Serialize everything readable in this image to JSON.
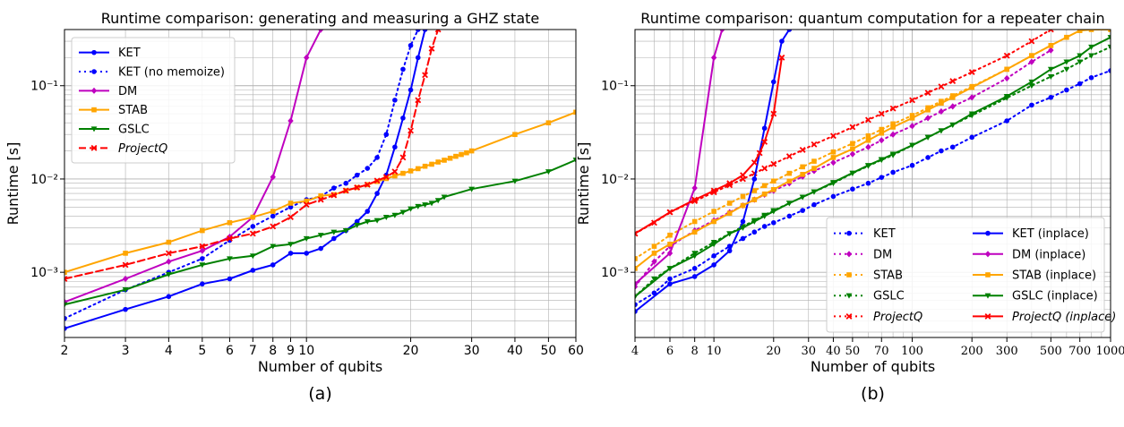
{
  "chart_data": [
    {
      "type": "line",
      "title": "Runtime comparison: generating and measuring a GHZ state",
      "xlabel": "Number of qubits",
      "ylabel": "Runtime [s]",
      "x_scale": "log",
      "y_scale": "log",
      "xlim": [
        2,
        60
      ],
      "ylim": [
        0.0002,
        0.4
      ],
      "x_ticks": [
        2,
        3,
        4,
        5,
        6,
        7,
        8,
        9,
        10,
        20,
        30,
        40,
        50,
        60
      ],
      "x_tick_labels": [
        "2",
        "3",
        "4",
        "5",
        "6",
        "7",
        "8",
        "9",
        "10",
        "20",
        "30",
        "40",
        "50",
        "60"
      ],
      "y_ticks": [
        0.001,
        0.01,
        0.1
      ],
      "y_tick_labels": [
        "10⁻³",
        "10⁻²",
        "10⁻¹"
      ],
      "grid": true,
      "legend_position": "top-left",
      "caption": "(a)",
      "series": [
        {
          "name": "KET",
          "color": "#0000ff",
          "style": "solid",
          "marker": "circle",
          "x": [
            2,
            3,
            4,
            5,
            6,
            7,
            8,
            9,
            10,
            11,
            12,
            13,
            14,
            15,
            16,
            17,
            18,
            19,
            20,
            21,
            22
          ],
          "y": [
            0.00025,
            0.0004,
            0.00055,
            0.00075,
            0.00085,
            0.00105,
            0.0012,
            0.0016,
            0.0016,
            0.0018,
            0.0023,
            0.0028,
            0.0035,
            0.0045,
            0.007,
            0.011,
            0.022,
            0.045,
            0.09,
            0.2,
            0.4
          ]
        },
        {
          "name": "KET (no memoize)",
          "color": "#0000ff",
          "style": "dotted",
          "marker": "circle",
          "x": [
            2,
            3,
            4,
            5,
            6,
            7,
            8,
            9,
            10,
            11,
            12,
            13,
            14,
            15,
            16,
            17,
            18,
            19,
            20,
            21
          ],
          "y": [
            0.00032,
            0.00065,
            0.001,
            0.0014,
            0.0022,
            0.0031,
            0.004,
            0.005,
            0.006,
            0.0065,
            0.008,
            0.009,
            0.011,
            0.013,
            0.017,
            0.03,
            0.07,
            0.15,
            0.27,
            0.4
          ]
        },
        {
          "name": "DM",
          "color": "#bf00bf",
          "style": "solid",
          "marker": "diamond",
          "x": [
            2,
            3,
            4,
            5,
            6,
            7,
            8,
            9,
            10,
            11
          ],
          "y": [
            0.00048,
            0.00085,
            0.0013,
            0.0017,
            0.0024,
            0.0039,
            0.0105,
            0.042,
            0.2,
            0.4
          ]
        },
        {
          "name": "STAB",
          "color": "#ffa500",
          "style": "solid",
          "marker": "square",
          "x": [
            2,
            3,
            4,
            5,
            6,
            7,
            8,
            9,
            10,
            11,
            12,
            13,
            14,
            15,
            16,
            17,
            18,
            19,
            20,
            21,
            22,
            23,
            24,
            25,
            26,
            27,
            28,
            29,
            30,
            40,
            50,
            60
          ],
          "y": [
            0.001,
            0.0016,
            0.0021,
            0.0028,
            0.0034,
            0.0039,
            0.0045,
            0.0055,
            0.0058,
            0.0066,
            0.0068,
            0.0075,
            0.0081,
            0.0087,
            0.0094,
            0.0101,
            0.0108,
            0.0115,
            0.0122,
            0.0129,
            0.0137,
            0.0144,
            0.0152,
            0.0159,
            0.0167,
            0.0175,
            0.0183,
            0.0191,
            0.02,
            0.03,
            0.04,
            0.052
          ]
        },
        {
          "name": "GSLC",
          "color": "#008000",
          "style": "solid",
          "marker": "triangle-down",
          "x": [
            2,
            3,
            4,
            5,
            6,
            7,
            8,
            9,
            10,
            11,
            12,
            13,
            14,
            15,
            16,
            17,
            18,
            19,
            20,
            21,
            22,
            23,
            24,
            25,
            30,
            40,
            50,
            60
          ],
          "y": [
            0.00045,
            0.00065,
            0.00095,
            0.0012,
            0.0014,
            0.0015,
            0.0019,
            0.002,
            0.0023,
            0.0025,
            0.0027,
            0.0028,
            0.0032,
            0.0035,
            0.0036,
            0.0039,
            0.0041,
            0.0044,
            0.0048,
            0.0051,
            0.0053,
            0.0055,
            0.0059,
            0.0064,
            0.0078,
            0.0095,
            0.012,
            0.016
          ]
        },
        {
          "name": "ProjectQ",
          "color": "#ff0000",
          "style": "dashed",
          "marker": "x",
          "x": [
            2,
            3,
            4,
            5,
            6,
            7,
            8,
            9,
            10,
            11,
            12,
            13,
            14,
            15,
            16,
            17,
            18,
            19,
            20,
            21,
            22,
            23,
            24
          ],
          "y": [
            0.00085,
            0.0012,
            0.0016,
            0.0019,
            0.0023,
            0.0026,
            0.0031,
            0.0039,
            0.0053,
            0.006,
            0.0067,
            0.0075,
            0.0081,
            0.0087,
            0.0096,
            0.0105,
            0.012,
            0.017,
            0.033,
            0.07,
            0.13,
            0.25,
            0.4
          ]
        }
      ]
    },
    {
      "type": "line",
      "title": "Runtime comparison: quantum computation for a repeater chain",
      "xlabel": "Number of qubits",
      "ylabel": "Runtime [s]",
      "x_scale": "log",
      "y_scale": "log",
      "xlim": [
        4,
        1000
      ],
      "ylim": [
        0.0002,
        0.4
      ],
      "x_ticks": [
        4,
        6,
        8,
        10,
        20,
        30,
        40,
        50,
        70,
        100,
        200,
        300,
        500,
        700,
        1000
      ],
      "x_tick_labels": [
        "4",
        "6",
        "8",
        "10",
        "20",
        "30",
        "40",
        "50",
        "70",
        "100",
        "200",
        "300",
        "500",
        "700",
        "1000"
      ],
      "y_ticks": [
        0.001,
        0.01,
        0.1
      ],
      "y_tick_labels": [
        "10⁻³",
        "10⁻²",
        "10⁻¹"
      ],
      "grid": true,
      "legend_position": "bottom-right",
      "caption": "(b)",
      "series": [
        {
          "name": "KET",
          "color": "#0000ff",
          "style": "dotted",
          "marker": "circle",
          "x": [
            4,
            5,
            6,
            8,
            10,
            12,
            14,
            16,
            18,
            20,
            24,
            28,
            32,
            40,
            50,
            60,
            70,
            80,
            100,
            120,
            140,
            160,
            200,
            300,
            400,
            500,
            600,
            700,
            800,
            1000
          ],
          "y": [
            0.00045,
            0.0006,
            0.00085,
            0.0011,
            0.0015,
            0.0019,
            0.0023,
            0.0027,
            0.0031,
            0.0034,
            0.004,
            0.0046,
            0.0053,
            0.0065,
            0.0078,
            0.009,
            0.0104,
            0.0118,
            0.014,
            0.017,
            0.02,
            0.022,
            0.028,
            0.042,
            0.062,
            0.075,
            0.09,
            0.105,
            0.122,
            0.145
          ]
        },
        {
          "name": "DM",
          "color": "#bf00bf",
          "style": "dotted",
          "marker": "diamond",
          "x": [
            4,
            5,
            6,
            8,
            10,
            12,
            14,
            16,
            18,
            20,
            24,
            28,
            32,
            40,
            50,
            60,
            70,
            80,
            100,
            120,
            140,
            160,
            200,
            300,
            400,
            500
          ],
          "y": [
            0.0007,
            0.0013,
            0.0019,
            0.0028,
            0.0036,
            0.0044,
            0.0052,
            0.006,
            0.0068,
            0.0075,
            0.009,
            0.0106,
            0.0122,
            0.015,
            0.0185,
            0.022,
            0.026,
            0.03,
            0.037,
            0.045,
            0.053,
            0.06,
            0.075,
            0.12,
            0.18,
            0.24
          ]
        },
        {
          "name": "STAB",
          "color": "#ffa500",
          "style": "dotted",
          "marker": "square",
          "x": [
            4,
            5,
            6,
            8,
            10,
            12,
            14,
            16,
            18,
            20,
            24,
            28,
            32,
            40,
            50,
            60,
            70,
            80,
            100,
            120,
            140,
            160,
            200,
            300,
            400,
            500
          ],
          "y": [
            0.0014,
            0.0019,
            0.0025,
            0.0035,
            0.0045,
            0.0055,
            0.0065,
            0.0075,
            0.0085,
            0.0095,
            0.0115,
            0.0135,
            0.0155,
            0.0195,
            0.024,
            0.029,
            0.034,
            0.039,
            0.048,
            0.058,
            0.068,
            0.078,
            0.098,
            0.15,
            0.21,
            0.27
          ]
        },
        {
          "name": "GSLC",
          "color": "#008000",
          "style": "dotted",
          "marker": "triangle-down",
          "x": [
            4,
            5,
            6,
            8,
            10,
            12,
            14,
            16,
            18,
            20,
            24,
            28,
            32,
            40,
            50,
            60,
            70,
            80,
            100,
            120,
            140,
            160,
            200,
            300,
            400,
            500,
            600,
            700,
            800,
            1000
          ],
          "y": [
            0.00055,
            0.00085,
            0.0011,
            0.0016,
            0.0021,
            0.0026,
            0.0031,
            0.0036,
            0.0041,
            0.0046,
            0.0055,
            0.0064,
            0.0073,
            0.009,
            0.0115,
            0.0138,
            0.016,
            0.018,
            0.023,
            0.028,
            0.033,
            0.038,
            0.048,
            0.074,
            0.1,
            0.125,
            0.15,
            0.18,
            0.21,
            0.26
          ]
        },
        {
          "name": "ProjectQ",
          "color": "#ff0000",
          "style": "dotted",
          "marker": "x",
          "x": [
            4,
            5,
            6,
            8,
            10,
            12,
            14,
            16,
            18,
            20,
            24,
            28,
            32,
            40,
            50,
            60,
            70,
            80,
            100,
            120,
            140,
            160,
            200,
            300,
            400,
            500
          ],
          "y": [
            0.0026,
            0.0034,
            0.0044,
            0.0058,
            0.0072,
            0.0086,
            0.01,
            0.0115,
            0.013,
            0.0145,
            0.0175,
            0.0205,
            0.0235,
            0.029,
            0.036,
            0.043,
            0.05,
            0.057,
            0.07,
            0.084,
            0.098,
            0.112,
            0.14,
            0.21,
            0.3,
            0.4
          ]
        },
        {
          "name": "KET (inplace)",
          "color": "#0000ff",
          "style": "solid",
          "marker": "circle",
          "x": [
            4,
            6,
            8,
            10,
            12,
            14,
            16,
            18,
            20,
            22,
            24
          ],
          "y": [
            0.00038,
            0.00075,
            0.0009,
            0.0012,
            0.0017,
            0.0035,
            0.01,
            0.035,
            0.11,
            0.3,
            0.4
          ]
        },
        {
          "name": "DM (inplace)",
          "color": "#bf00bf",
          "style": "solid",
          "marker": "diamond",
          "x": [
            4,
            6,
            8,
            10,
            11
          ],
          "y": [
            0.00075,
            0.0016,
            0.008,
            0.2,
            0.4
          ]
        },
        {
          "name": "STAB (inplace)",
          "color": "#ffa500",
          "style": "solid",
          "marker": "square",
          "x": [
            4,
            5,
            6,
            8,
            10,
            12,
            14,
            16,
            18,
            20,
            24,
            28,
            32,
            40,
            50,
            60,
            70,
            80,
            100,
            120,
            140,
            160,
            200,
            300,
            400,
            500,
            600,
            700,
            800,
            1000
          ],
          "y": [
            0.0011,
            0.0016,
            0.002,
            0.0027,
            0.0035,
            0.0043,
            0.0052,
            0.006,
            0.0069,
            0.0077,
            0.0095,
            0.0112,
            0.013,
            0.017,
            0.021,
            0.026,
            0.031,
            0.036,
            0.045,
            0.055,
            0.065,
            0.075,
            0.096,
            0.15,
            0.21,
            0.27,
            0.33,
            0.39,
            0.4,
            0.4
          ]
        },
        {
          "name": "GSLC (inplace)",
          "color": "#008000",
          "style": "solid",
          "marker": "triangle-down",
          "x": [
            4,
            6,
            8,
            10,
            12,
            14,
            16,
            18,
            20,
            24,
            28,
            32,
            40,
            50,
            60,
            70,
            80,
            100,
            120,
            140,
            160,
            200,
            300,
            400,
            500,
            600,
            700,
            800,
            1000
          ],
          "y": [
            0.00055,
            0.0011,
            0.0015,
            0.002,
            0.0026,
            0.003,
            0.0035,
            0.004,
            0.0045,
            0.0055,
            0.0064,
            0.0073,
            0.0092,
            0.0116,
            0.014,
            0.0162,
            0.0185,
            0.023,
            0.028,
            0.033,
            0.038,
            0.05,
            0.077,
            0.11,
            0.15,
            0.18,
            0.21,
            0.26,
            0.33
          ]
        },
        {
          "name": "ProjectQ (inplace)",
          "color": "#ff0000",
          "style": "solid",
          "marker": "x",
          "x": [
            4,
            6,
            8,
            10,
            12,
            14,
            16,
            17,
            18,
            20,
            22
          ],
          "y": [
            0.0026,
            0.0044,
            0.006,
            0.0075,
            0.009,
            0.011,
            0.015,
            0.019,
            0.025,
            0.05,
            0.2
          ]
        }
      ]
    }
  ]
}
